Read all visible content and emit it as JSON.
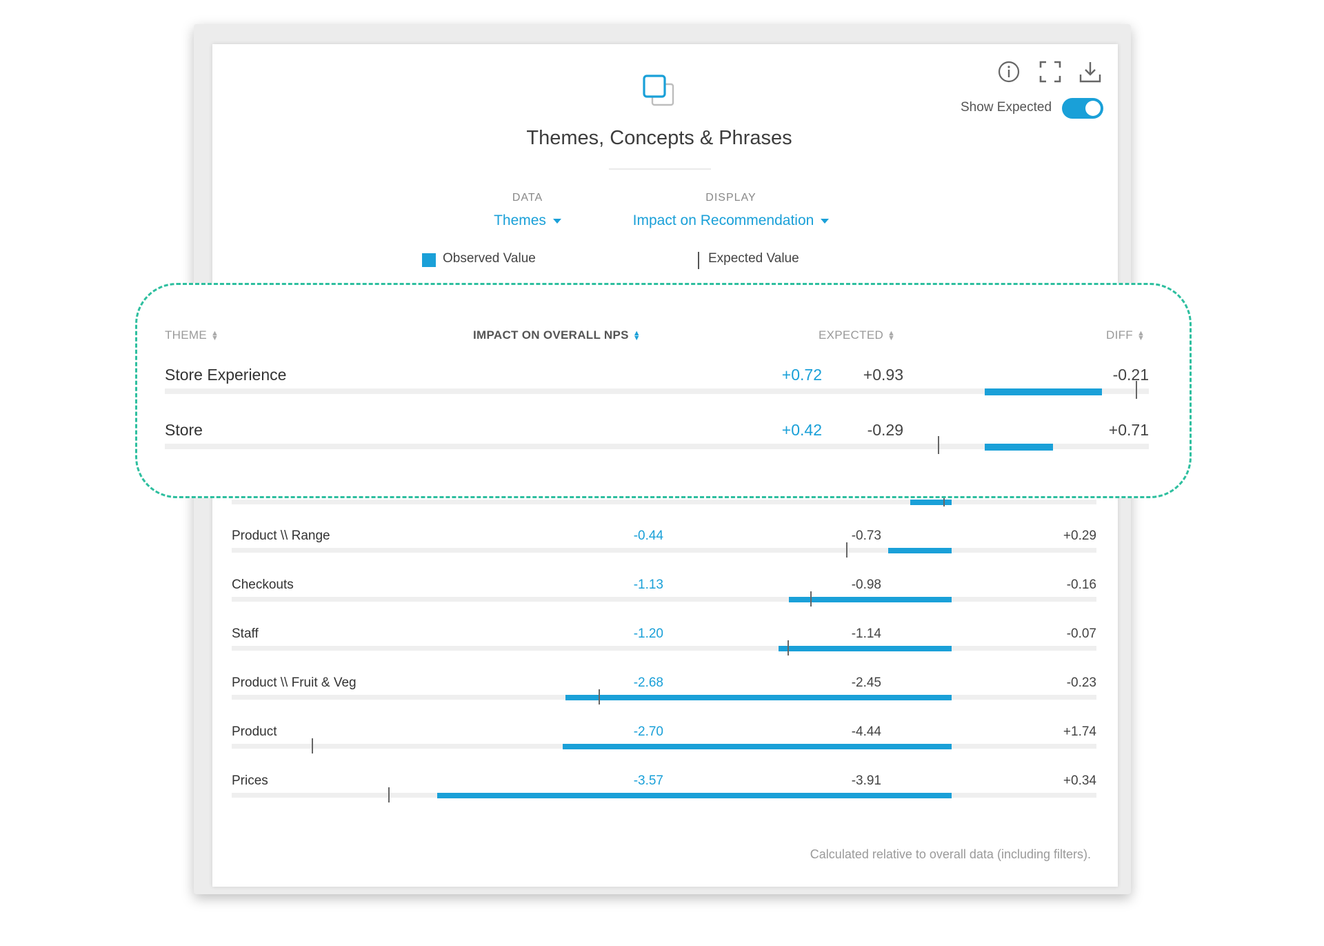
{
  "toolbar": {
    "icons": [
      "info-icon",
      "fullscreen-icon",
      "download-icon"
    ],
    "show_expected_label": "Show Expected",
    "show_expected_on": true
  },
  "header": {
    "icon": "layers-icon",
    "title": "Themes, Concepts & Phrases"
  },
  "selectors": {
    "data": {
      "caption": "DATA",
      "value": "Themes"
    },
    "display": {
      "caption": "DISPLAY",
      "value": "Impact on Recommendation"
    }
  },
  "legend": {
    "observed": "Observed Value",
    "expected": "Expected Value"
  },
  "table": {
    "columns": {
      "theme": "THEME",
      "impact": "IMPACT ON OVERALL NPS",
      "expected": "EXPECTED",
      "diff": "DIFF"
    },
    "highlighted_rows": [
      {
        "name": "Store Experience",
        "impact": "+0.72",
        "expected": "+0.93",
        "diff": "-0.21",
        "impact_value": 0.72,
        "expected_value": 0.93
      },
      {
        "name": "Store",
        "impact": "+0.42",
        "expected": "-0.29",
        "diff": "+0.71",
        "impact_value": 0.42,
        "expected_value": -0.29
      }
    ],
    "rows": [
      {
        "name": "Product \\\\ Range",
        "impact": "-0.44",
        "expected": "-0.73",
        "diff": "+0.29",
        "impact_value": -0.44,
        "expected_value": -0.73
      },
      {
        "name": "Checkouts",
        "impact": "-1.13",
        "expected": "-0.98",
        "diff": "-0.16",
        "impact_value": -1.13,
        "expected_value": -0.98
      },
      {
        "name": "Staff",
        "impact": "-1.20",
        "expected": "-1.14",
        "diff": "-0.07",
        "impact_value": -1.2,
        "expected_value": -1.14
      },
      {
        "name": "Product \\\\ Fruit & Veg",
        "impact": "-2.68",
        "expected": "-2.45",
        "diff": "-0.23",
        "impact_value": -2.68,
        "expected_value": -2.45
      },
      {
        "name": "Product",
        "impact": "-2.70",
        "expected": "-4.44",
        "diff": "+1.74",
        "impact_value": -2.7,
        "expected_value": -4.44
      },
      {
        "name": "Prices",
        "impact": "-3.57",
        "expected": "-3.91",
        "diff": "+0.34",
        "impact_value": -3.57,
        "expected_value": -3.91
      }
    ]
  },
  "footnote": "Calculated relative to overall data (including filters).",
  "colors": {
    "accent": "#1aa0d8",
    "highlight_border": "#2ebf9f"
  }
}
